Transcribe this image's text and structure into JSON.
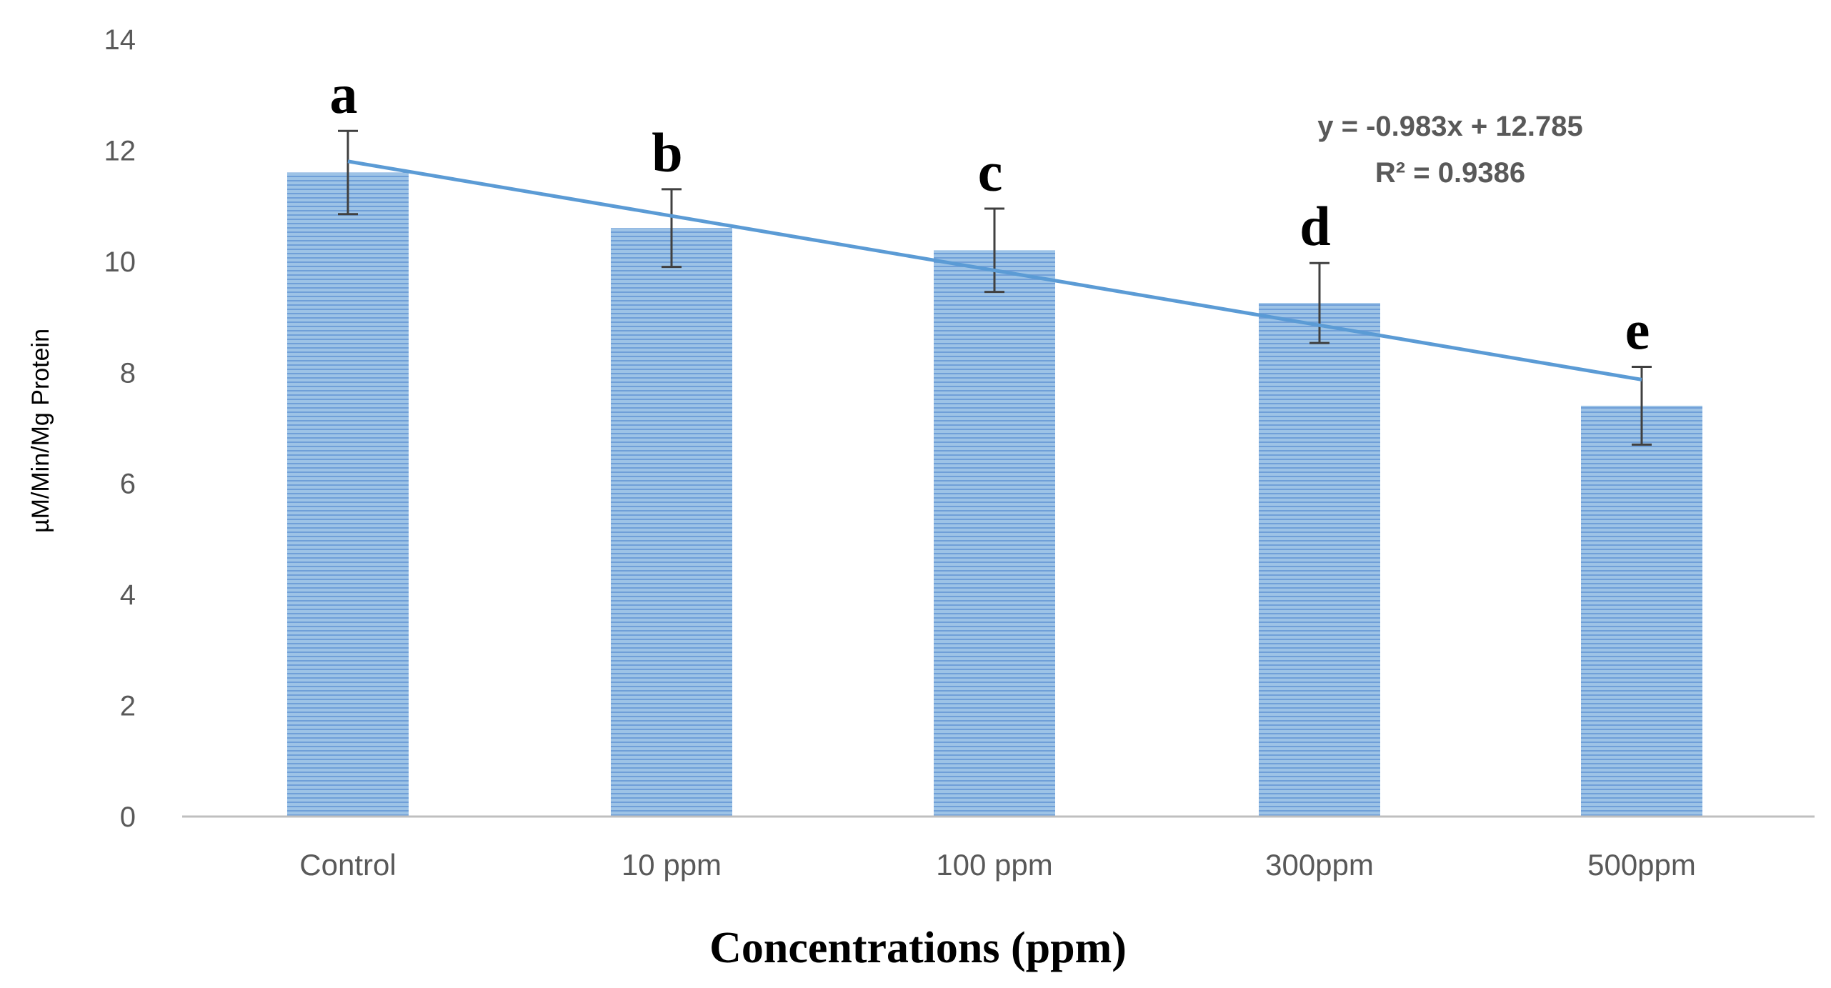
{
  "chart_data": {
    "type": "bar",
    "title": "",
    "xlabel": "Concentrations (ppm)",
    "ylabel": "µM/Min/Mg Protein",
    "ylim": [
      0,
      14
    ],
    "yticks": [
      0,
      2,
      4,
      6,
      8,
      10,
      12,
      14
    ],
    "ytick_labels": [
      "0",
      "2",
      "4",
      "6",
      "8",
      "10",
      "12",
      "14"
    ],
    "categories": [
      "Control",
      "10 ppm",
      "100 ppm",
      "300ppm",
      "500ppm"
    ],
    "values": [
      11.6,
      10.6,
      10.2,
      9.25,
      7.4
    ],
    "errors": [
      0.75,
      0.7,
      0.75,
      0.72,
      0.7
    ],
    "significance_letters": [
      "a",
      "b",
      "c",
      "d",
      "e"
    ],
    "trendline": {
      "type": "linear",
      "slope": -0.983,
      "intercept": 12.785,
      "equation": "y = -0.983x + 12.785",
      "r_squared": "R² = 0.9386"
    },
    "grid": false,
    "bar_color": "#9DC3E6",
    "bar_stripe_color": "#6F9FD8",
    "trend_color": "#5B9BD5",
    "error_color": "#404040"
  }
}
